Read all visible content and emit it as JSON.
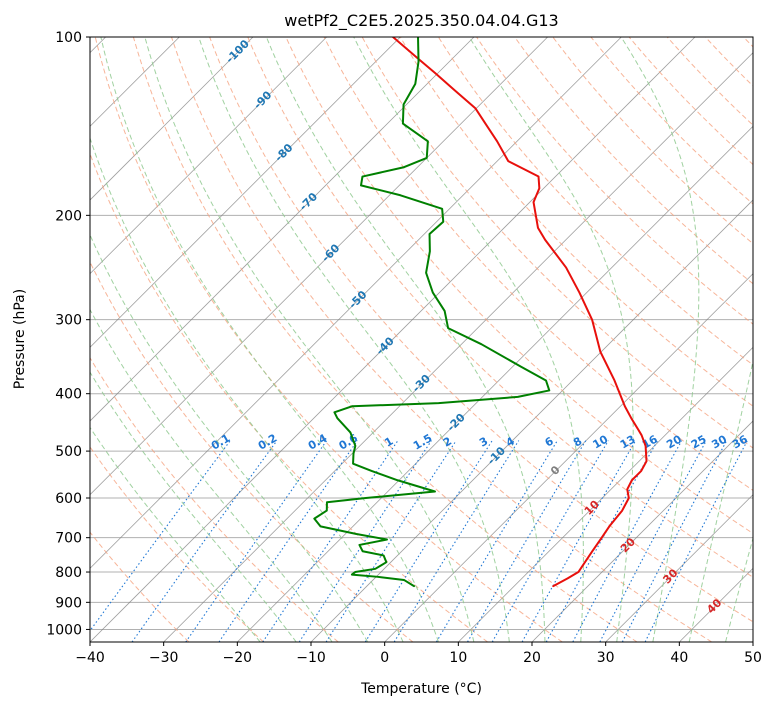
{
  "chart_data": {
    "type": "line",
    "title": "wetPf2_C2E5.2025.350.04.04.G13",
    "xlabel": "Temperature (°C)",
    "ylabel": "Pressure (hPa)",
    "xlim": [
      -40,
      50
    ],
    "ylim": [
      1050,
      100
    ],
    "y_scale": "log",
    "skew": "skew-T log-P diagram",
    "grid": true,
    "x_ticks": [
      {
        "value": -40,
        "label": "−40"
      },
      {
        "value": -30,
        "label": "−30"
      },
      {
        "value": -20,
        "label": "−20"
      },
      {
        "value": -10,
        "label": "−10"
      },
      {
        "value": 0,
        "label": "0"
      },
      {
        "value": 10,
        "label": "10"
      },
      {
        "value": 20,
        "label": "20"
      },
      {
        "value": 30,
        "label": "30"
      },
      {
        "value": 40,
        "label": "40"
      },
      {
        "value": 50,
        "label": "50"
      }
    ],
    "y_ticks": [
      {
        "value": 100,
        "label": "100"
      },
      {
        "value": 200,
        "label": "200"
      },
      {
        "value": 300,
        "label": "300"
      },
      {
        "value": 400,
        "label": "400"
      },
      {
        "value": 500,
        "label": "500"
      },
      {
        "value": 600,
        "label": "600"
      },
      {
        "value": 700,
        "label": "700"
      },
      {
        "value": 800,
        "label": "800"
      },
      {
        "value": 900,
        "label": "900"
      },
      {
        "value": 1000,
        "label": "1000"
      }
    ],
    "series": [
      {
        "role": "temperature",
        "color": "#e8100c",
        "points": [
          [
            15.3,
            845
          ],
          [
            16.2,
            820
          ],
          [
            16.8,
            800
          ],
          [
            16.5,
            780
          ],
          [
            15.9,
            740
          ],
          [
            15.3,
            700
          ],
          [
            14.8,
            670
          ],
          [
            14.4,
            630
          ],
          [
            13.6,
            600
          ],
          [
            12.2,
            580
          ],
          [
            11.6,
            560
          ],
          [
            11.6,
            540
          ],
          [
            11.0,
            520
          ],
          [
            8.8,
            490
          ],
          [
            6.8,
            470
          ],
          [
            5.6,
            460
          ],
          [
            3.1,
            440
          ],
          [
            0.6,
            420
          ],
          [
            -4.3,
            380
          ],
          [
            -10.1,
            340
          ],
          [
            -15.6,
            300
          ],
          [
            -21.0,
            270
          ],
          [
            -26.2,
            245
          ],
          [
            -32.8,
            220
          ],
          [
            -35.4,
            210
          ],
          [
            -37.4,
            200
          ],
          [
            -39.5,
            190
          ],
          [
            -40.6,
            180
          ],
          [
            -42.3,
            172
          ],
          [
            -48.5,
            162
          ],
          [
            -52.7,
            150
          ],
          [
            -56.7,
            140
          ],
          [
            -60.1,
            132
          ],
          [
            -65.4,
            123
          ],
          [
            -70.4,
            115
          ],
          [
            -74.5,
            109
          ],
          [
            -79.5,
            102
          ],
          [
            -81.0,
            100
          ]
        ]
      },
      {
        "role": "dewpoint",
        "color": "#008000",
        "points": [
          [
            -3.6,
            845
          ],
          [
            -5.8,
            825
          ],
          [
            -9.8,
            815
          ],
          [
            -13.6,
            808
          ],
          [
            -13.5,
            800
          ],
          [
            -11.2,
            790
          ],
          [
            -10.6,
            770
          ],
          [
            -11.9,
            750
          ],
          [
            -15.3,
            738
          ],
          [
            -16.6,
            720
          ],
          [
            -13.6,
            705
          ],
          [
            -18.5,
            690
          ],
          [
            -24.4,
            670
          ],
          [
            -26.3,
            650
          ],
          [
            -25.7,
            630
          ],
          [
            -26.8,
            610
          ],
          [
            -22.1,
            600
          ],
          [
            -13.6,
            585
          ],
          [
            -20.2,
            560
          ],
          [
            -25.0,
            540
          ],
          [
            -28.5,
            525
          ],
          [
            -29.8,
            505
          ],
          [
            -30.6,
            490
          ],
          [
            -33.1,
            465
          ],
          [
            -36.8,
            440
          ],
          [
            -38.0,
            430
          ],
          [
            -36.4,
            420
          ],
          [
            -25.1,
            415
          ],
          [
            -15.2,
            405
          ],
          [
            -11.8,
            395
          ],
          [
            -13.6,
            380
          ],
          [
            -18.9,
            360
          ],
          [
            -27.3,
            330
          ],
          [
            -34.0,
            310
          ],
          [
            -36.8,
            290
          ],
          [
            -40.9,
            270
          ],
          [
            -44.5,
            250
          ],
          [
            -46.9,
            230
          ],
          [
            -49.3,
            215
          ],
          [
            -49.1,
            205
          ],
          [
            -51.0,
            195
          ],
          [
            -58.5,
            185
          ],
          [
            -65.2,
            178
          ],
          [
            -66.2,
            172
          ],
          [
            -61.9,
            166
          ],
          [
            -60.0,
            160
          ],
          [
            -62.1,
            150
          ],
          [
            -67.9,
            140
          ],
          [
            -70.4,
            130
          ],
          [
            -71.6,
            120
          ],
          [
            -74.2,
            110
          ],
          [
            -77.6,
            100
          ]
        ]
      }
    ],
    "dry_adiabats_theta_c": [
      -30,
      -20,
      -10,
      0,
      10,
      20,
      30,
      40,
      50,
      60,
      70,
      80,
      90,
      100,
      110,
      120,
      130,
      140,
      150,
      160,
      170,
      180,
      190,
      200
    ],
    "moist_adiabats_start_c": [
      -20,
      -15,
      -10,
      -5,
      0,
      5,
      10,
      15,
      20,
      25,
      30,
      35,
      40,
      45
    ],
    "mixing_ratio_lines": [
      {
        "w": 0.1,
        "label": "0.1"
      },
      {
        "w": 0.2,
        "label": "0.2"
      },
      {
        "w": 0.4,
        "label": "0.4"
      },
      {
        "w": 0.6,
        "label": "0.6"
      },
      {
        "w": 1,
        "label": "1"
      },
      {
        "w": 1.5,
        "label": "1.5"
      },
      {
        "w": 2,
        "label": "2"
      },
      {
        "w": 3,
        "label": "3"
      },
      {
        "w": 4,
        "label": "4"
      },
      {
        "w": 6,
        "label": "6"
      },
      {
        "w": 8,
        "label": "8"
      },
      {
        "w": 10,
        "label": "10"
      },
      {
        "w": 13,
        "label": "13"
      },
      {
        "w": 16,
        "label": "16"
      },
      {
        "w": 20,
        "label": "20"
      },
      {
        "w": 25,
        "label": "25"
      },
      {
        "w": 30,
        "label": "30"
      },
      {
        "w": 36,
        "label": "36"
      }
    ],
    "isotherm_labels_blue": [
      {
        "t": -100,
        "p": 106,
        "label": "-100"
      },
      {
        "t": -90,
        "p": 128,
        "label": "-90"
      },
      {
        "t": -80,
        "p": 157,
        "label": "-80"
      },
      {
        "t": -70,
        "p": 190,
        "label": "-70"
      },
      {
        "t": -60,
        "p": 232,
        "label": "-60"
      },
      {
        "t": -50,
        "p": 278,
        "label": "-50"
      },
      {
        "t": -40,
        "p": 333,
        "label": "-40"
      },
      {
        "t": -30,
        "p": 385,
        "label": "-30"
      },
      {
        "t": -20,
        "p": 448,
        "label": "-20"
      },
      {
        "t": -10,
        "p": 510,
        "label": "-10"
      }
    ],
    "isotherm_labels_other": [
      {
        "t": 0,
        "p": 540,
        "label": "0",
        "color": "#808080"
      },
      {
        "t": 10,
        "p": 624,
        "label": "10",
        "color": "#d62728"
      },
      {
        "t": 20,
        "p": 722,
        "label": "20",
        "color": "#d62728"
      },
      {
        "t": 30,
        "p": 815,
        "label": "30",
        "color": "#d62728"
      },
      {
        "t": 40,
        "p": 915,
        "label": "40",
        "color": "#d62728"
      }
    ],
    "colors": {
      "isotherm": "#808080",
      "isobar": "#b0b0b0",
      "dry_adiabat": "#f5a280",
      "moist_adiabat": "#8fc98f",
      "mixing_ratio": "#1f77d4",
      "label_blue": "#1f77b4",
      "label_red": "#d62728"
    }
  }
}
